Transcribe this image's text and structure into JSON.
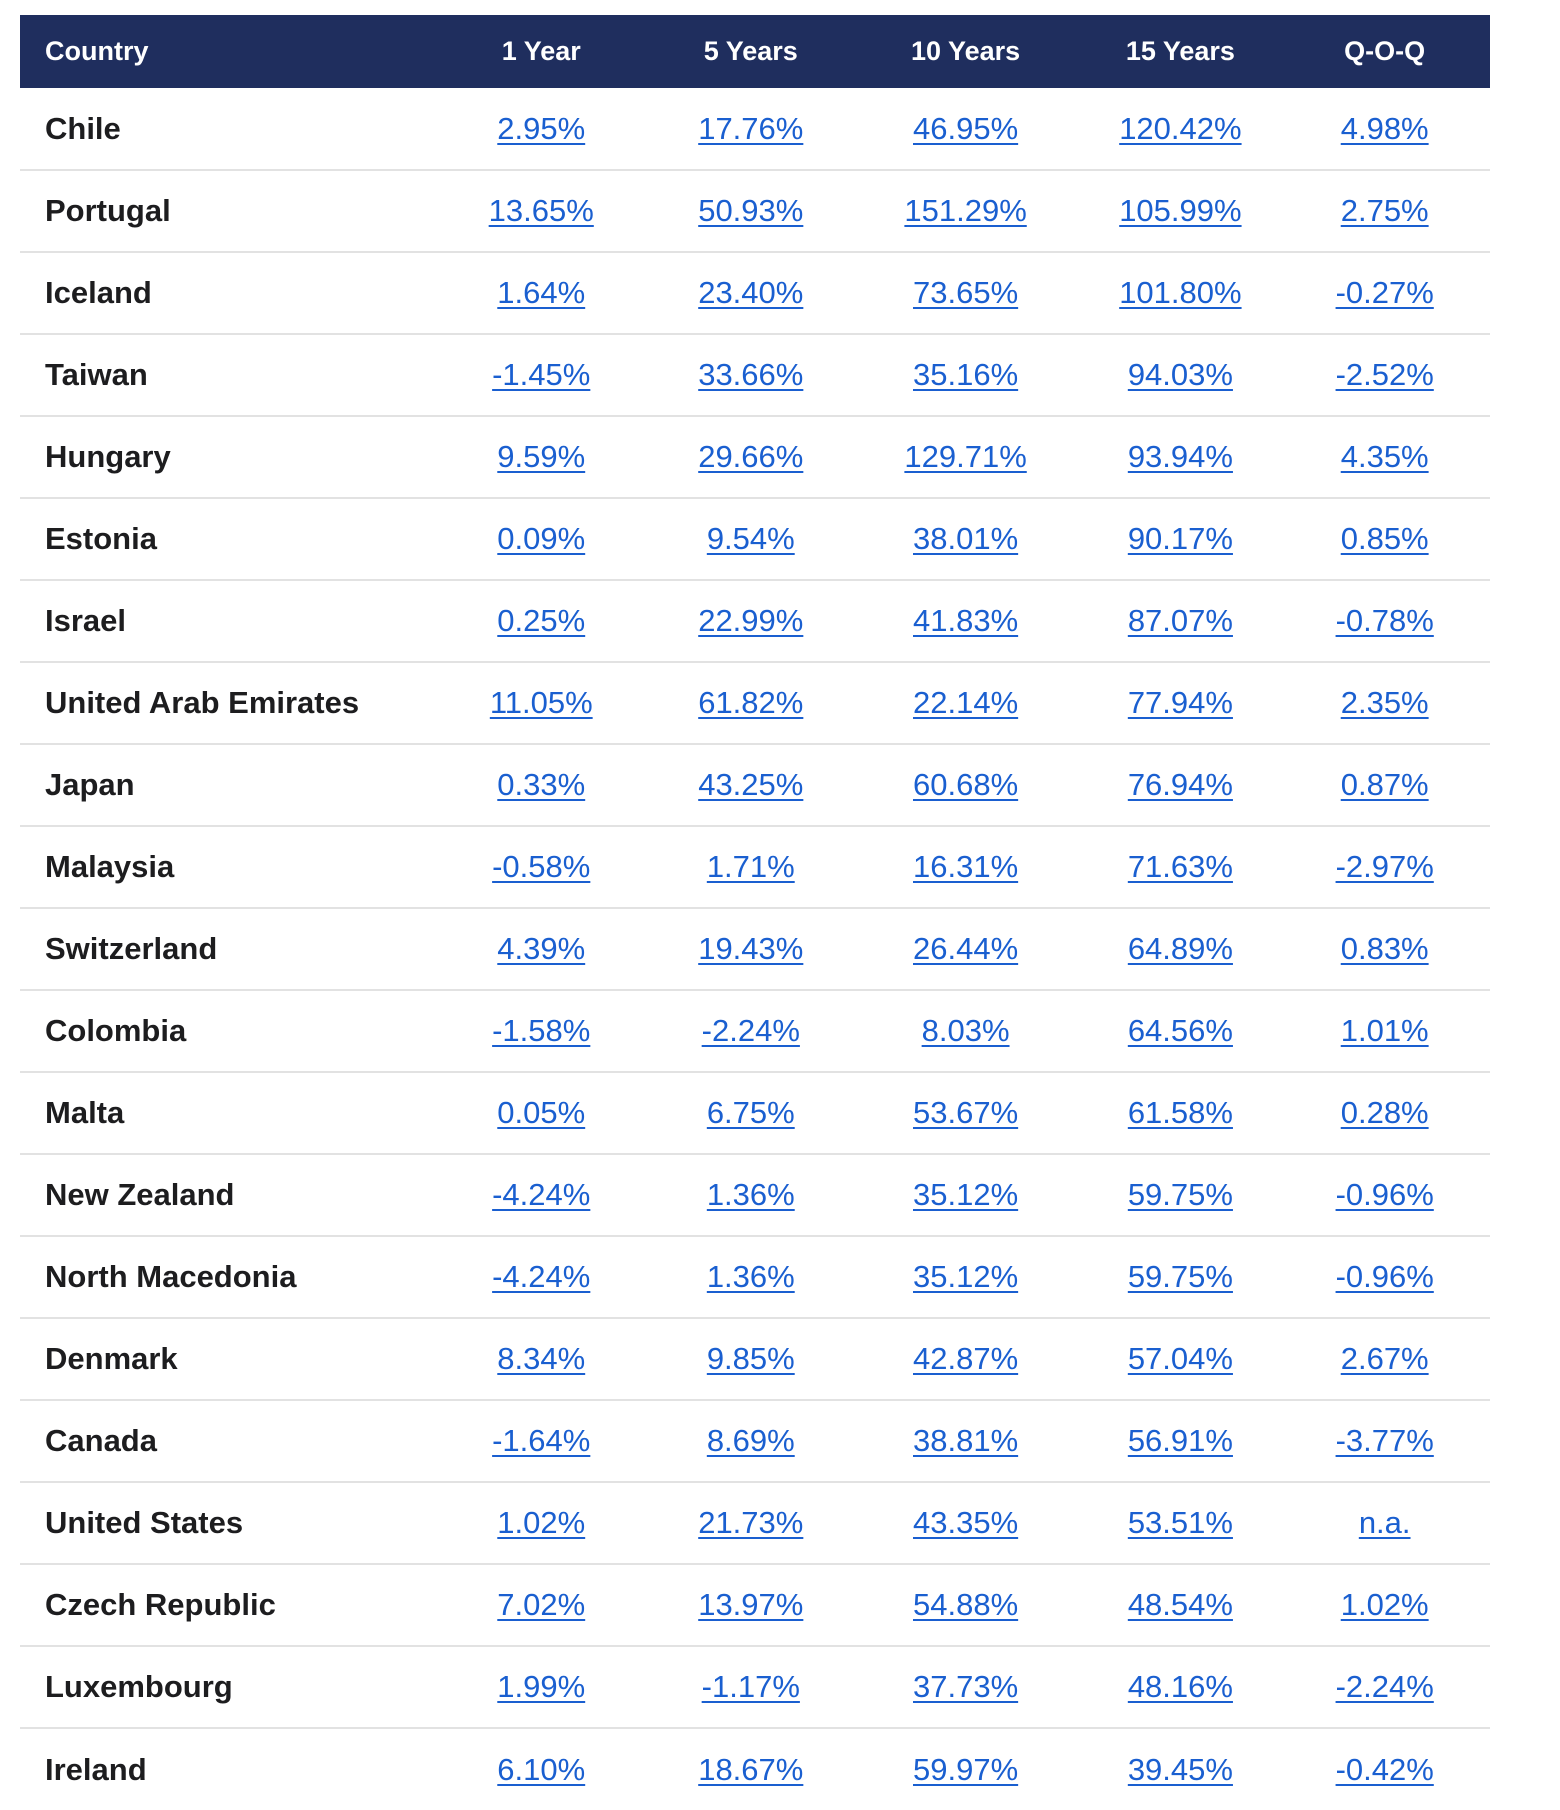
{
  "table": {
    "headers": [
      "Country",
      "1 Year",
      "5 Years",
      "10 Years",
      "15 Years",
      "Q-O-Q"
    ],
    "rows": [
      {
        "country": "Chile",
        "y1": "2.95%",
        "y5": "17.76%",
        "y10": "46.95%",
        "y15": "120.42%",
        "qoq": "4.98%"
      },
      {
        "country": "Portugal",
        "y1": "13.65%",
        "y5": "50.93%",
        "y10": "151.29%",
        "y15": "105.99%",
        "qoq": "2.75%"
      },
      {
        "country": "Iceland",
        "y1": "1.64%",
        "y5": "23.40%",
        "y10": "73.65%",
        "y15": "101.80%",
        "qoq": "-0.27%"
      },
      {
        "country": "Taiwan",
        "y1": "-1.45%",
        "y5": "33.66%",
        "y10": "35.16%",
        "y15": "94.03%",
        "qoq": "-2.52%"
      },
      {
        "country": "Hungary",
        "y1": "9.59%",
        "y5": "29.66%",
        "y10": "129.71%",
        "y15": "93.94%",
        "qoq": "4.35%"
      },
      {
        "country": "Estonia",
        "y1": "0.09%",
        "y5": "9.54%",
        "y10": "38.01%",
        "y15": "90.17%",
        "qoq": "0.85%"
      },
      {
        "country": "Israel",
        "y1": "0.25%",
        "y5": "22.99%",
        "y10": "41.83%",
        "y15": "87.07%",
        "qoq": "-0.78%"
      },
      {
        "country": "United Arab Emirates",
        "y1": "11.05%",
        "y5": "61.82%",
        "y10": "22.14%",
        "y15": "77.94%",
        "qoq": "2.35%"
      },
      {
        "country": "Japan",
        "y1": "0.33%",
        "y5": "43.25%",
        "y10": "60.68%",
        "y15": "76.94%",
        "qoq": "0.87%"
      },
      {
        "country": "Malaysia",
        "y1": "-0.58%",
        "y5": "1.71%",
        "y10": "16.31%",
        "y15": "71.63%",
        "qoq": "-2.97%"
      },
      {
        "country": "Switzerland",
        "y1": "4.39%",
        "y5": "19.43%",
        "y10": "26.44%",
        "y15": "64.89%",
        "qoq": "0.83%"
      },
      {
        "country": "Colombia",
        "y1": "-1.58%",
        "y5": "-2.24%",
        "y10": "8.03%",
        "y15": "64.56%",
        "qoq": "1.01%"
      },
      {
        "country": "Malta",
        "y1": "0.05%",
        "y5": "6.75%",
        "y10": "53.67%",
        "y15": "61.58%",
        "qoq": "0.28%"
      },
      {
        "country": "New Zealand",
        "y1": "-4.24%",
        "y5": "1.36%",
        "y10": "35.12%",
        "y15": "59.75%",
        "qoq": "-0.96%"
      },
      {
        "country": "North Macedonia",
        "y1": "-4.24%",
        "y5": "1.36%",
        "y10": "35.12%",
        "y15": "59.75%",
        "qoq": "-0.96%"
      },
      {
        "country": "Denmark",
        "y1": "8.34%",
        "y5": "9.85%",
        "y10": "42.87%",
        "y15": "57.04%",
        "qoq": "2.67%"
      },
      {
        "country": "Canada",
        "y1": "-1.64%",
        "y5": "8.69%",
        "y10": "38.81%",
        "y15": "56.91%",
        "qoq": "-3.77%"
      },
      {
        "country": "United States",
        "y1": "1.02%",
        "y5": "21.73%",
        "y10": "43.35%",
        "y15": "53.51%",
        "qoq": "n.a."
      },
      {
        "country": "Czech Republic",
        "y1": "7.02%",
        "y5": "13.97%",
        "y10": "54.88%",
        "y15": "48.54%",
        "qoq": "1.02%"
      },
      {
        "country": "Luxembourg",
        "y1": "1.99%",
        "y5": "-1.17%",
        "y10": "37.73%",
        "y15": "48.16%",
        "qoq": "-2.24%"
      },
      {
        "country": "Ireland",
        "y1": "6.10%",
        "y5": "18.67%",
        "y10": "59.97%",
        "y15": "39.45%",
        "qoq": "-0.42%"
      }
    ]
  },
  "colors": {
    "header_bg": "#1f2e5e",
    "link": "#1a5fd0",
    "country_text": "#1d1d1f",
    "row_border": "#e2e2e2"
  }
}
